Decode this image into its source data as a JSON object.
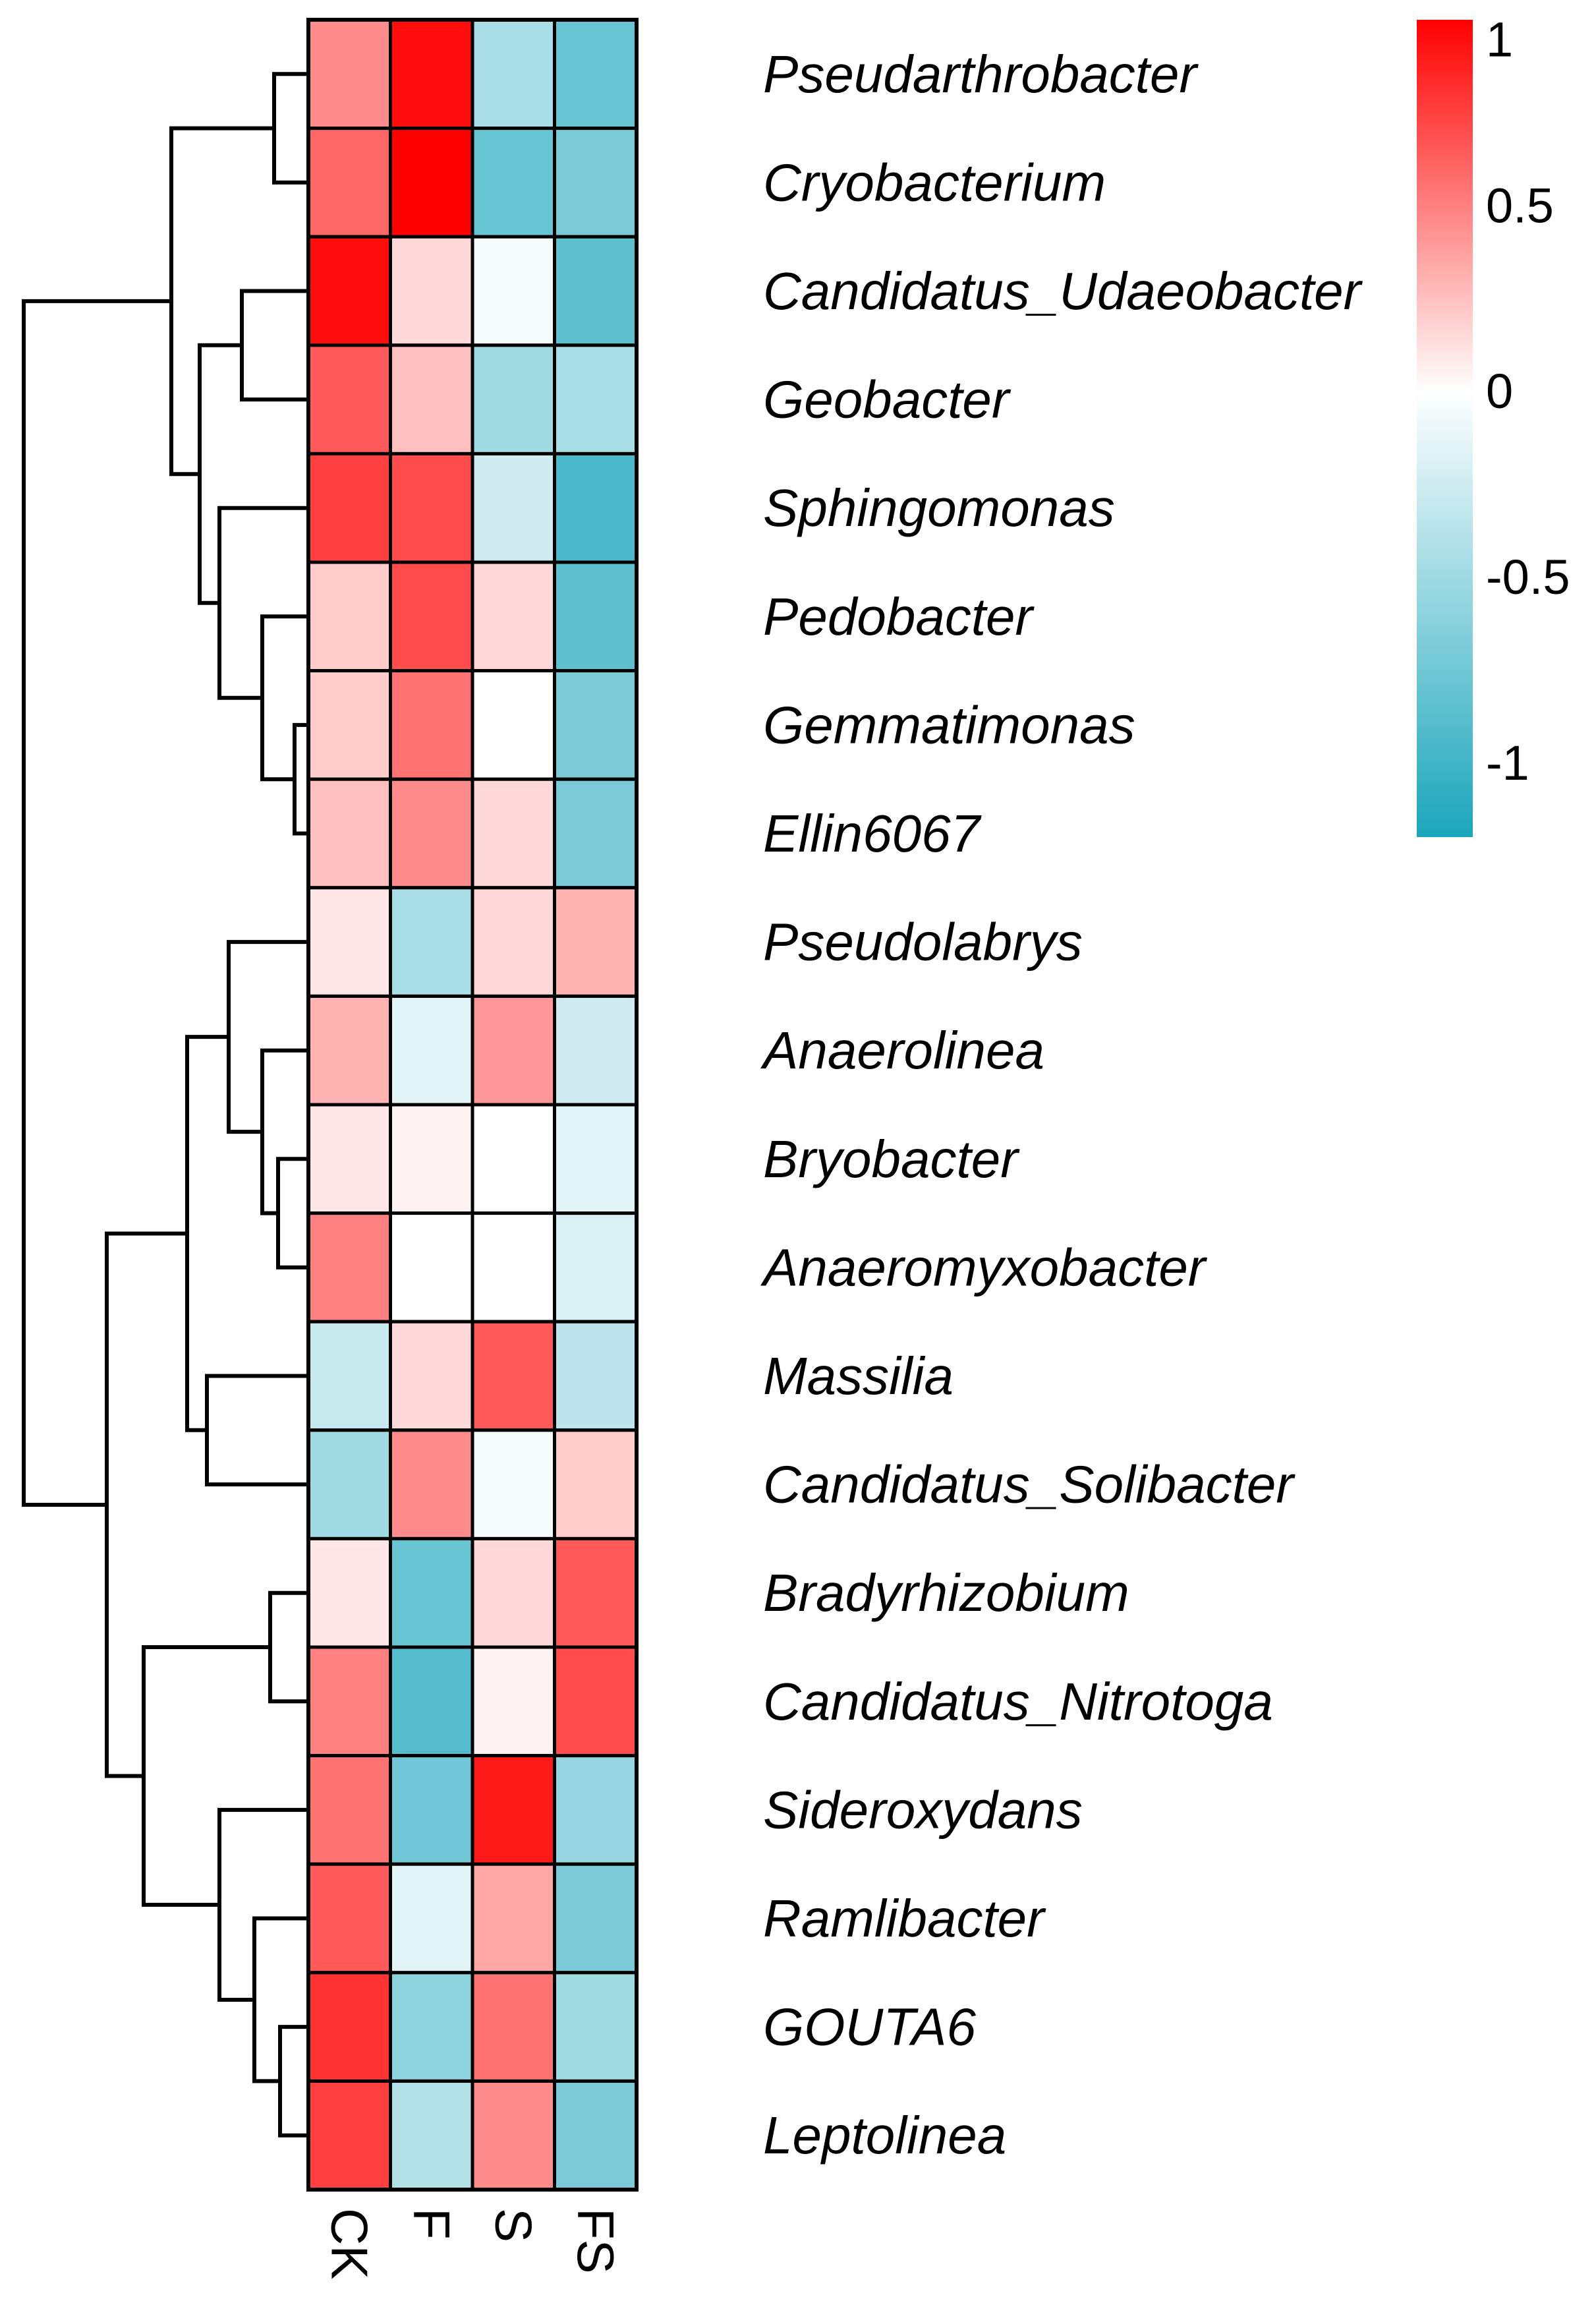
{
  "chart_data": {
    "type": "heatmap",
    "title": "",
    "xlabel": "",
    "ylabel": "",
    "columns": [
      "CK",
      "F",
      "S",
      "FS"
    ],
    "rows": [
      "Pseudarthrobacter",
      "Cryobacterium",
      "Candidatus_Udaeobacter",
      "Geobacter",
      "Sphingomonas",
      "Pedobacter",
      "Gemmatimonas",
      "Ellin6067",
      "Pseudolabrys",
      "Anaerolinea",
      "Bryobacter",
      "Anaeromyxobacter",
      "Massilia",
      "Candidatus_Solibacter",
      "Bradyrhizobium",
      "Candidatus_Nitrotoga",
      "Sideroxydans",
      "Ramlibacter",
      "GOUTA6",
      "Leptolinea"
    ],
    "values": [
      [
        0.45,
        0.95,
        -0.45,
        -0.8
      ],
      [
        0.6,
        1.0,
        -0.8,
        -0.7
      ],
      [
        0.95,
        0.15,
        -0.05,
        -0.85
      ],
      [
        0.65,
        0.25,
        -0.5,
        -0.45
      ],
      [
        0.75,
        0.7,
        -0.25,
        -0.95
      ],
      [
        0.2,
        0.7,
        0.15,
        -0.85
      ],
      [
        0.2,
        0.55,
        0.0,
        -0.7
      ],
      [
        0.25,
        0.45,
        0.15,
        -0.7
      ],
      [
        0.1,
        -0.45,
        0.15,
        0.3
      ],
      [
        0.3,
        -0.15,
        0.4,
        -0.25
      ],
      [
        0.1,
        0.05,
        0.0,
        -0.15
      ],
      [
        0.5,
        0.0,
        0.0,
        -0.2
      ],
      [
        -0.3,
        0.15,
        0.65,
        -0.35
      ],
      [
        -0.5,
        0.45,
        -0.05,
        0.2
      ],
      [
        0.1,
        -0.8,
        0.15,
        0.65
      ],
      [
        0.5,
        -0.9,
        0.05,
        0.7
      ],
      [
        0.55,
        -0.75,
        0.9,
        -0.55
      ],
      [
        0.65,
        -0.15,
        0.35,
        -0.7
      ],
      [
        0.8,
        -0.6,
        0.55,
        -0.5
      ],
      [
        0.75,
        -0.4,
        0.45,
        -0.7
      ]
    ],
    "color_scale": {
      "min": -1.2,
      "max": 1.0,
      "ticks": [
        1,
        0.5,
        0,
        -0.5,
        -1
      ],
      "tick_labels": [
        "1",
        "0.5",
        "0",
        "-0.5",
        "-1"
      ],
      "colors": {
        "low": "#1ba6bb",
        "mid": "#ffffff",
        "high": "#ff0000"
      },
      "legend_position": "top-right"
    },
    "row_dendrogram": true
  }
}
